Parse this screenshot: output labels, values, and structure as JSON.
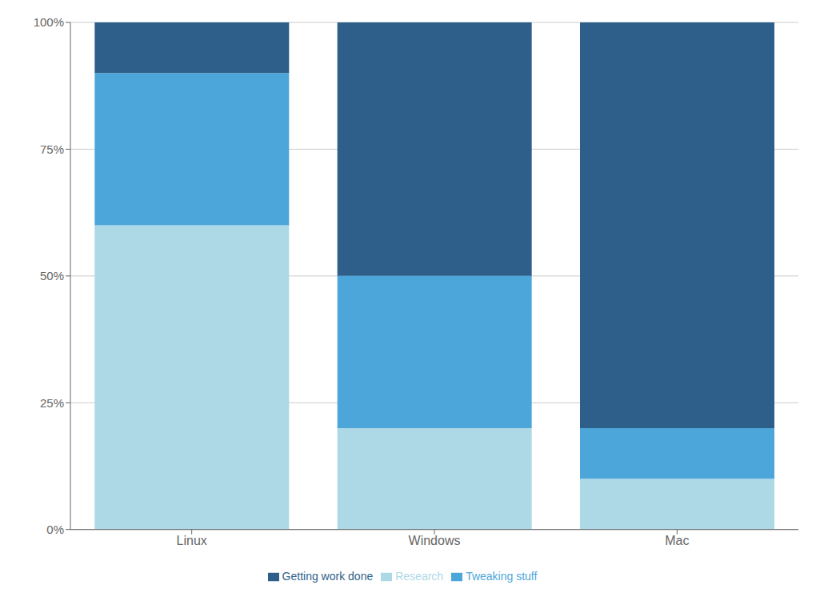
{
  "chart_data": {
    "type": "bar",
    "stacked": true,
    "categories": [
      "Linux",
      "Windows",
      "Mac"
    ],
    "series": [
      {
        "name": "Research",
        "color": "#add8e6",
        "values": [
          60,
          20,
          10
        ]
      },
      {
        "name": "Tweaking stuff",
        "color": "#4da6d9",
        "values": [
          30,
          30,
          10
        ]
      },
      {
        "name": "Getting work done",
        "color": "#2d5f8a",
        "values": [
          10,
          50,
          80
        ]
      }
    ],
    "ylim": [
      0,
      100
    ],
    "yticks": [
      {
        "value": 0,
        "label": "0%"
      },
      {
        "value": 25,
        "label": "25%"
      },
      {
        "value": 50,
        "label": "50%"
      },
      {
        "value": 75,
        "label": "75%"
      },
      {
        "value": 100,
        "label": "100%"
      }
    ],
    "grid": true,
    "legend": "bottom"
  }
}
